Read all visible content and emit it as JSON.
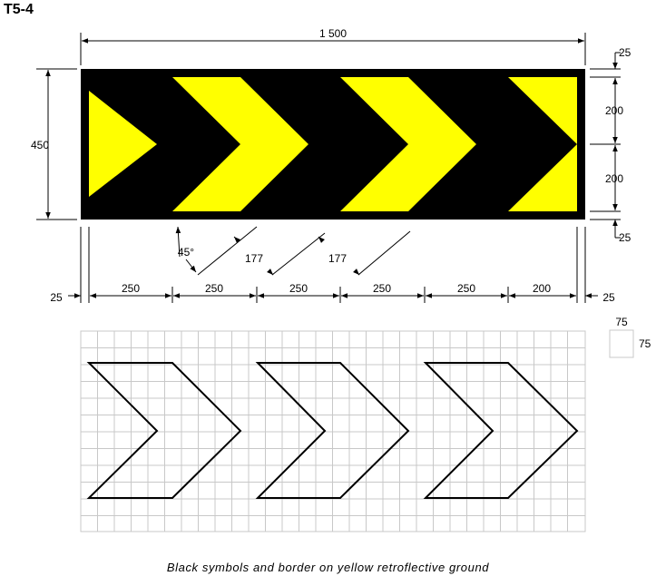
{
  "code": "T5-4",
  "caption": "Black symbols and border on yellow retroflective ground",
  "colors": {
    "ground": "#ffff00",
    "symbols": "#000000",
    "grid": "#c8c8c8",
    "outline": "#000000"
  },
  "dimensions": {
    "overall_width": "1 500",
    "height": "450",
    "border_top": "25",
    "border_bottom": "25",
    "upper_half": "200",
    "lower_half": "200",
    "left_margin": "25",
    "right_margin": "25",
    "segments": [
      "250",
      "250",
      "250",
      "250",
      "250",
      "200"
    ],
    "angle": "45°",
    "stroke_width_1": "177",
    "stroke_width_2": "177"
  },
  "grid_legend": {
    "cell_width": "75",
    "cell_height": "75"
  }
}
